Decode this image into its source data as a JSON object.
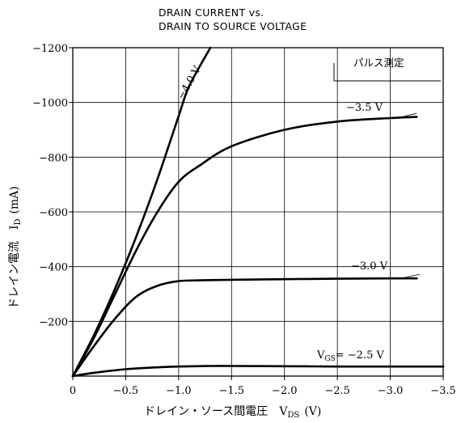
{
  "chart_data": {
    "type": "line",
    "title_lines": [
      "DRAIN CURRENT vs.",
      "DRAIN TO SOURCE VOLTAGE"
    ],
    "xlabel": "ドレイン・ソース間電圧　V_DS (V)",
    "xlabel_main": "ドレイン・ソース間電圧",
    "xlabel_symbol": "V",
    "xlabel_sub": "DS",
    "xlabel_unit": "(V)",
    "ylabel": "ドレイン電流　I_D (mA)",
    "ylabel_main": "ドレイン電流",
    "ylabel_symbol": "I",
    "ylabel_sub": "D",
    "ylabel_unit": "(mA)",
    "xlim": [
      0,
      -3.5
    ],
    "ylim": [
      0,
      -1200
    ],
    "grid": true,
    "x_ticks": [
      {
        "value": 0,
        "label": "0"
      },
      {
        "value": -0.5,
        "label": "−0.5"
      },
      {
        "value": -1.0,
        "label": "−1.0"
      },
      {
        "value": -1.5,
        "label": "−1.5"
      },
      {
        "value": -2.0,
        "label": "−2.0"
      },
      {
        "value": -2.5,
        "label": "−2.5"
      },
      {
        "value": -3.0,
        "label": "−3.0"
      },
      {
        "value": -3.5,
        "label": "−3.5"
      }
    ],
    "y_ticks": [
      {
        "value": -200,
        "label": "−200"
      },
      {
        "value": -400,
        "label": "−400"
      },
      {
        "value": -600,
        "label": "−600"
      },
      {
        "value": -800,
        "label": "−800"
      },
      {
        "value": -1000,
        "label": "−1000"
      },
      {
        "value": -1200,
        "label": "−1200"
      }
    ],
    "annotation": "パルス測定",
    "series": [
      {
        "name": "−4.0 V",
        "points": [
          [
            0,
            0
          ],
          [
            -0.2,
            -150
          ],
          [
            -0.4,
            -320
          ],
          [
            -0.6,
            -510
          ],
          [
            -0.8,
            -720
          ],
          [
            -1.0,
            -950
          ],
          [
            -1.1,
            -1060
          ],
          [
            -1.3,
            -1200
          ]
        ]
      },
      {
        "name": "−3.5 V",
        "points": [
          [
            0,
            0
          ],
          [
            -0.2,
            -140
          ],
          [
            -0.4,
            -300
          ],
          [
            -0.6,
            -460
          ],
          [
            -0.8,
            -600
          ],
          [
            -1.0,
            -710
          ],
          [
            -1.2,
            -770
          ],
          [
            -1.5,
            -840
          ],
          [
            -2.0,
            -900
          ],
          [
            -2.5,
            -930
          ],
          [
            -3.0,
            -943
          ],
          [
            -3.25,
            -947
          ]
        ]
      },
      {
        "name": "−3.0 V",
        "points": [
          [
            0,
            0
          ],
          [
            -0.2,
            -110
          ],
          [
            -0.4,
            -210
          ],
          [
            -0.6,
            -290
          ],
          [
            -0.8,
            -330
          ],
          [
            -1.0,
            -347
          ],
          [
            -1.2,
            -350
          ],
          [
            -1.5,
            -352
          ],
          [
            -2.0,
            -354
          ],
          [
            -2.5,
            -356
          ],
          [
            -3.0,
            -357
          ],
          [
            -3.25,
            -357
          ]
        ]
      },
      {
        "name_prefix": "V",
        "name_sub": "GS",
        "name_value": "= −2.5 V",
        "points": [
          [
            0,
            0
          ],
          [
            -0.2,
            -12
          ],
          [
            -0.5,
            -25
          ],
          [
            -0.8,
            -32
          ],
          [
            -1.0,
            -35
          ],
          [
            -1.3,
            -37
          ],
          [
            -1.5,
            -37
          ],
          [
            -2.0,
            -36
          ],
          [
            -2.5,
            -35
          ],
          [
            -3.0,
            -35
          ],
          [
            -3.5,
            -35
          ]
        ]
      }
    ]
  }
}
